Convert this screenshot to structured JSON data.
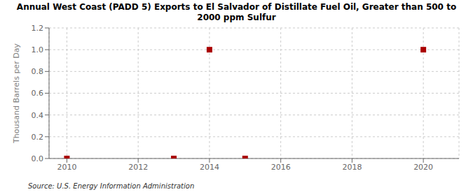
{
  "chart_data": {
    "type": "scatter",
    "title": "Annual West Coast (PADD 5) Exports to El Salvador of Distillate Fuel Oil, Greater than 500 to\n2000 ppm Sulfur",
    "ylabel": "Thousand Barrels per Day",
    "source": "Source: U.S. Energy Information Administration",
    "x": [
      2010,
      2013,
      2014,
      2015,
      2020
    ],
    "values": [
      0.0,
      0.0,
      1.0,
      0.0,
      1.0
    ],
    "color": "#aa0000",
    "marker": "square",
    "xlim": [
      2009.5,
      2021.0
    ],
    "xticks": [
      2010,
      2012,
      2014,
      2016,
      2018,
      2020
    ],
    "ylim": [
      0,
      1.2
    ],
    "yticks": [
      {
        "value": 0.0,
        "label": "0.0"
      },
      0.2,
      0.4,
      0.6,
      0.8,
      {
        "value": 1.0,
        "label": "1.0"
      },
      1.2
    ],
    "grid": true
  }
}
